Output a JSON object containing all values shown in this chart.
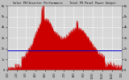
{
  "title": "Solar PV/Inverter Performance    Total PV Panel Power Output",
  "bg_color": "#c0c0c0",
  "plot_bg_color": "#d8d8d8",
  "grid_color": "#ffffff",
  "bar_color": "#cc0000",
  "line_color": "#0000cc",
  "text_color": "#000000",
  "title_color": "#000000",
  "ylim": [
    0,
    6000
  ],
  "xlim": [
    0,
    365
  ],
  "line_y": 1800,
  "num_points": 365,
  "yticks": [
    0,
    1000,
    2000,
    3000,
    4000,
    5000,
    6000
  ],
  "ytick_labels": [
    "0",
    "1k",
    "2k",
    "3k",
    "4k",
    "5k",
    "6k"
  ],
  "month_days": [
    0,
    31,
    59,
    90,
    120,
    151,
    181,
    212,
    243,
    273,
    304,
    334,
    365
  ],
  "month_labels": [
    "1/03",
    "2/03",
    "3/03",
    "4/03",
    "5/03",
    "6/03",
    "7/03",
    "8/03",
    "9/03",
    "10/03",
    "11/03",
    "12/03",
    "1/04"
  ]
}
